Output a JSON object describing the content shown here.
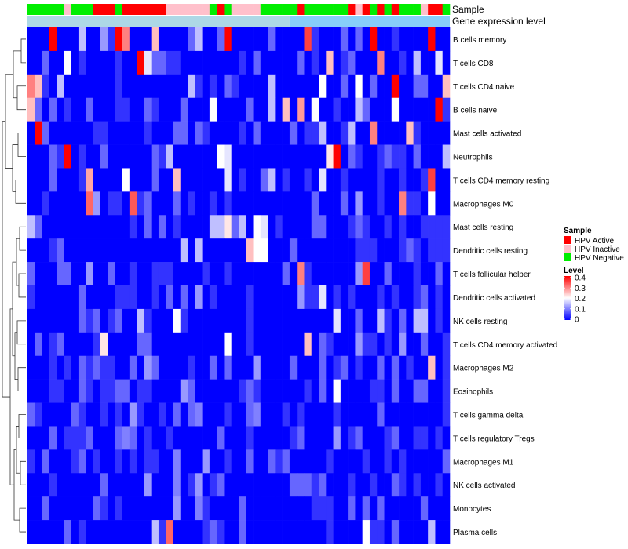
{
  "chart_data": {
    "type": "heatmap",
    "title": "",
    "annotation_tracks": [
      {
        "name": "Sample",
        "legend_title": "Sample"
      },
      {
        "name": "Gene expression level"
      }
    ],
    "sample_categories": [
      {
        "name": "HPV Active",
        "color": "#ff0000"
      },
      {
        "name": "HPV Inactive",
        "color": "#ffc0cb"
      },
      {
        "name": "HPV Negative",
        "color": "#00ee00"
      }
    ],
    "sample_annotation": [
      "Negative",
      "Negative",
      "Negative",
      "Negative",
      "Negative",
      "Inactive",
      "Negative",
      "Negative",
      "Negative",
      "Active",
      "Active",
      "Active",
      "Negative",
      "Active",
      "Active",
      "Active",
      "Active",
      "Active",
      "Active",
      "Inactive",
      "Inactive",
      "Inactive",
      "Inactive",
      "Inactive",
      "Inactive",
      "Negative",
      "Active",
      "Negative",
      "Inactive",
      "Inactive",
      "Inactive",
      "Inactive",
      "Negative",
      "Negative",
      "Negative",
      "Negative",
      "Negative",
      "Active",
      "Negative",
      "Negative",
      "Negative",
      "Negative",
      "Negative",
      "Negative",
      "Active",
      "Inactive",
      "Active",
      "Negative",
      "Active",
      "Negative",
      "Active",
      "Negative",
      "Negative",
      "Negative",
      "Inactive",
      "Active",
      "Active",
      "Negative"
    ],
    "expression_annotation": [
      {
        "from": 0,
        "to": 36,
        "color": "#add8e6"
      },
      {
        "from": 36,
        "to": 58,
        "color": "#87cefa"
      }
    ],
    "legend_level": {
      "title": "Level",
      "ticks": [
        "0.4",
        "0.3",
        "0.2",
        "0.1",
        "0"
      ],
      "min": 0,
      "max": 0.4,
      "colors": [
        "#0000ff",
        "#ffffff",
        "#ff0000"
      ]
    },
    "rows": [
      "B cells memory",
      "T cells CD8",
      "T cells CD4 naive",
      "B cells naive",
      "Mast cells activated",
      "Neutrophils",
      "T cells CD4 memory resting",
      "Macrophages M0",
      "Mast cells resting",
      "Dendritic cells resting",
      "T cells follicular helper",
      "Dendritic cells activated",
      "NK cells resting",
      "T cells CD4 memory activated",
      "Macrophages M2",
      "Eosinophils",
      "T cells gamma delta",
      "T cells regulatory  Tregs",
      "Macrophages M1",
      "NK cells activated",
      "Monocytes",
      "Plasma cells"
    ],
    "n_columns": 58,
    "hotspots": [
      [
        0,
        12,
        0.4
      ],
      [
        0,
        27,
        0.4
      ],
      [
        0,
        47,
        0.4
      ],
      [
        0,
        55,
        0.4
      ],
      [
        0,
        3,
        0.4
      ],
      [
        0,
        7,
        0.15
      ],
      [
        0,
        10,
        0.12
      ],
      [
        0,
        13,
        0.3
      ],
      [
        0,
        17,
        0.25
      ],
      [
        0,
        38,
        0.35
      ],
      [
        0,
        23,
        0.15
      ],
      [
        1,
        15,
        0.4
      ],
      [
        1,
        5,
        0.2
      ],
      [
        1,
        48,
        0.3
      ],
      [
        1,
        41,
        0.25
      ],
      [
        1,
        53,
        0.15
      ],
      [
        1,
        56,
        0.18
      ],
      [
        1,
        16,
        0.18
      ],
      [
        2,
        0,
        0.3
      ],
      [
        2,
        1,
        0.25
      ],
      [
        2,
        50,
        0.4
      ],
      [
        2,
        57,
        0.25
      ],
      [
        2,
        40,
        0.2
      ],
      [
        2,
        45,
        0.2
      ],
      [
        2,
        33,
        0.15
      ],
      [
        2,
        22,
        0.15
      ],
      [
        2,
        4,
        0.15
      ],
      [
        3,
        0,
        0.25
      ],
      [
        3,
        37,
        0.28
      ],
      [
        3,
        35,
        0.25
      ],
      [
        3,
        39,
        0.2
      ],
      [
        3,
        56,
        0.4
      ],
      [
        3,
        50,
        0.2
      ],
      [
        3,
        25,
        0.2
      ],
      [
        3,
        33,
        0.15
      ],
      [
        3,
        45,
        0.15
      ],
      [
        4,
        1,
        0.4
      ],
      [
        4,
        47,
        0.3
      ],
      [
        4,
        52,
        0.25
      ],
      [
        4,
        44,
        0.15
      ],
      [
        4,
        40,
        0.15
      ],
      [
        5,
        5,
        0.4
      ],
      [
        5,
        42,
        0.4
      ],
      [
        5,
        41,
        0.22
      ],
      [
        5,
        57,
        0.15
      ],
      [
        5,
        26,
        0.2
      ],
      [
        5,
        19,
        0.15
      ],
      [
        5,
        27,
        0.18
      ],
      [
        6,
        8,
        0.27
      ],
      [
        6,
        20,
        0.25
      ],
      [
        6,
        55,
        0.35
      ],
      [
        6,
        13,
        0.2
      ],
      [
        6,
        40,
        0.18
      ],
      [
        6,
        27,
        0.18
      ],
      [
        6,
        33,
        0.15
      ],
      [
        7,
        8,
        0.32
      ],
      [
        7,
        14,
        0.33
      ],
      [
        7,
        51,
        0.3
      ],
      [
        7,
        55,
        0.2
      ],
      [
        7,
        9,
        0.12
      ],
      [
        7,
        45,
        0.12
      ],
      [
        8,
        0,
        0.15
      ],
      [
        8,
        27,
        0.22
      ],
      [
        8,
        31,
        0.2
      ],
      [
        8,
        32,
        0.18
      ],
      [
        8,
        29,
        0.15
      ],
      [
        8,
        26,
        0.15
      ],
      [
        8,
        25,
        0.15
      ],
      [
        9,
        30,
        0.25
      ],
      [
        9,
        32,
        0.2
      ],
      [
        9,
        31,
        0.2
      ],
      [
        9,
        23,
        0.15
      ],
      [
        9,
        21,
        0.15
      ],
      [
        10,
        37,
        0.3
      ],
      [
        10,
        46,
        0.35
      ],
      [
        10,
        8,
        0.12
      ],
      [
        10,
        45,
        0.12
      ],
      [
        11,
        40,
        0.18
      ],
      [
        11,
        23,
        0.12
      ],
      [
        11,
        37,
        0.12
      ],
      [
        12,
        15,
        0.15
      ],
      [
        12,
        20,
        0.2
      ],
      [
        12,
        48,
        0.15
      ],
      [
        12,
        53,
        0.15
      ],
      [
        12,
        54,
        0.15
      ],
      [
        12,
        42,
        0.18
      ],
      [
        13,
        10,
        0.22
      ],
      [
        13,
        38,
        0.25
      ],
      [
        13,
        27,
        0.2
      ],
      [
        13,
        51,
        0.12
      ],
      [
        13,
        45,
        0.12
      ],
      [
        14,
        55,
        0.25
      ],
      [
        14,
        16,
        0.12
      ],
      [
        14,
        31,
        0.12
      ],
      [
        15,
        42,
        0.2
      ],
      [
        15,
        21,
        0.12
      ],
      [
        16,
        14,
        0.12
      ],
      [
        16,
        23,
        0.1
      ],
      [
        16,
        31,
        0.1
      ],
      [
        17,
        42,
        0.12
      ],
      [
        17,
        13,
        0.1
      ],
      [
        18,
        24,
        0.12
      ],
      [
        18,
        20,
        0.1
      ],
      [
        19,
        16,
        0.12
      ],
      [
        19,
        20,
        0.1
      ],
      [
        19,
        23,
        0.12
      ],
      [
        20,
        20,
        0.12
      ],
      [
        20,
        23,
        0.1
      ],
      [
        21,
        19,
        0.32
      ],
      [
        21,
        46,
        0.2
      ],
      [
        21,
        55,
        0.15
      ],
      [
        21,
        17,
        0.15
      ]
    ]
  }
}
